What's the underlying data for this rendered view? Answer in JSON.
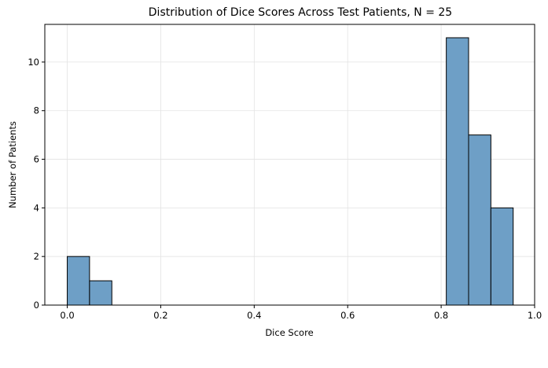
{
  "chart_data": {
    "type": "bar",
    "title": "Distribution of Dice Scores Across Test Patients, N = 25",
    "xlabel": "Dice Score",
    "ylabel": "Number of Patients",
    "xlim": [
      -0.048,
      1.0
    ],
    "ylim": [
      0,
      11.55
    ],
    "x_ticks": [
      0.0,
      0.2,
      0.4,
      0.6,
      0.8,
      1.0
    ],
    "x_tick_labels": [
      "0.0",
      "0.2",
      "0.4",
      "0.6",
      "0.8",
      "1.0"
    ],
    "y_ticks": [
      0,
      2,
      4,
      6,
      8,
      10
    ],
    "y_tick_labels": [
      "0",
      "2",
      "4",
      "6",
      "8",
      "10"
    ],
    "grid": true,
    "bars": [
      {
        "x0": 0.0,
        "x1": 0.0477,
        "value": 2
      },
      {
        "x0": 0.0477,
        "x1": 0.0954,
        "value": 1
      },
      {
        "x0": 0.811,
        "x1": 0.8587,
        "value": 11
      },
      {
        "x0": 0.8587,
        "x1": 0.9064,
        "value": 7
      },
      {
        "x0": 0.9064,
        "x1": 0.9541,
        "value": 4
      }
    ],
    "bar_color": "#6e9fc6",
    "edge_color": "#000000"
  }
}
